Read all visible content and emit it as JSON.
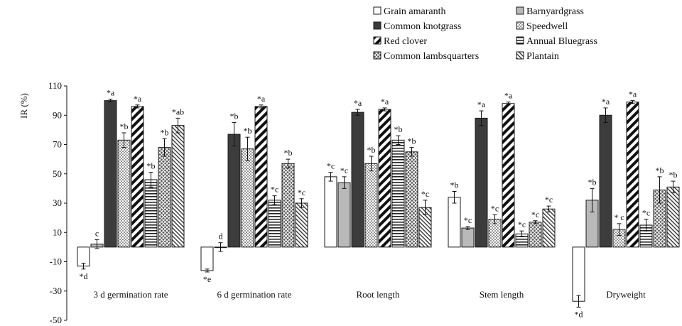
{
  "colors": {
    "dark": "#3c3c3c",
    "light_gray": "#b9b9b9",
    "outline": "#1a1a1a",
    "background": "#ffffff"
  },
  "chart_data": {
    "type": "bar",
    "title": "",
    "xlabel": "",
    "ylabel": "IR (%)",
    "ylim": [
      -50,
      110
    ],
    "yticks": [
      110,
      90,
      70,
      50,
      30,
      10,
      -10,
      -30,
      -50
    ],
    "grid": false,
    "legend_position": "top-right",
    "categories": [
      "3 d germination rate",
      "6 d germination rate",
      "Root length",
      "Stem length",
      "Dryweight"
    ],
    "series": [
      {
        "name": "Grain amaranth",
        "pattern": "white",
        "values": [
          -13,
          -16,
          48,
          34,
          -37
        ],
        "errors": [
          2,
          1,
          3,
          4,
          4
        ],
        "labels": [
          "*d",
          "*e",
          "*c",
          "*b",
          "*d"
        ]
      },
      {
        "name": "Barnyardgrass",
        "pattern": "light-gray",
        "values": [
          2,
          0,
          44,
          13,
          32
        ],
        "errors": [
          3,
          3,
          4,
          1,
          8
        ],
        "labels": [
          "c",
          "d",
          "*c",
          "*c",
          "*b"
        ]
      },
      {
        "name": "Common knotgrass",
        "pattern": "dark",
        "values": [
          100,
          77,
          92,
          88,
          90
        ],
        "errors": [
          1,
          8,
          2,
          5,
          5
        ],
        "labels": [
          "*a",
          "*b",
          "*a",
          "*a",
          "*a"
        ]
      },
      {
        "name": "Speedwell",
        "pattern": "dots",
        "values": [
          73,
          67,
          57,
          19,
          12
        ],
        "errors": [
          5,
          8,
          5,
          3,
          4
        ],
        "labels": [
          "*b",
          "*b",
          "*b",
          "*c",
          "* c"
        ]
      },
      {
        "name": "Red clover",
        "pattern": "diagonal",
        "values": [
          96,
          96,
          94,
          98,
          99
        ],
        "errors": [
          1,
          1,
          1,
          1,
          1
        ],
        "labels": [
          "*a",
          "*a",
          "*a",
          "*a",
          "*a"
        ]
      },
      {
        "name": "Annual Bluegrass",
        "pattern": "horizontal",
        "values": [
          46,
          32,
          73,
          9,
          15
        ],
        "errors": [
          5,
          3,
          3,
          2,
          4
        ],
        "labels": [
          "*b",
          "*c",
          "*b",
          "*c",
          "*c"
        ]
      },
      {
        "name": "Common lambsquarters",
        "pattern": "crosshatch",
        "values": [
          68,
          57,
          65,
          17,
          39
        ],
        "errors": [
          6,
          3,
          3,
          1,
          9
        ],
        "labels": [
          "*b",
          "*b",
          "*b",
          "*c",
          "*b"
        ]
      },
      {
        "name": "Plantain",
        "pattern": "fine-diagonal",
        "values": [
          83,
          30,
          27,
          26,
          41
        ],
        "errors": [
          5,
          3,
          5,
          2,
          4
        ],
        "labels": [
          "*ab",
          "*c",
          "*c",
          "*c",
          "*b"
        ]
      }
    ]
  }
}
